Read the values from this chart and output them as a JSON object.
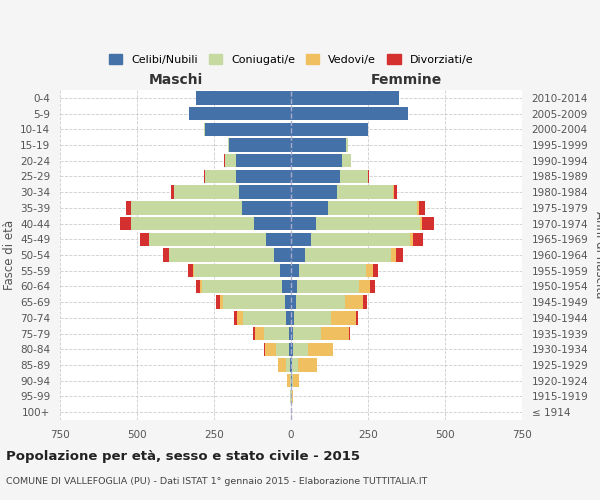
{
  "age_groups": [
    "100+",
    "95-99",
    "90-94",
    "85-89",
    "80-84",
    "75-79",
    "70-74",
    "65-69",
    "60-64",
    "55-59",
    "50-54",
    "45-49",
    "40-44",
    "35-39",
    "30-34",
    "25-29",
    "20-24",
    "15-19",
    "10-14",
    "5-9",
    "0-4"
  ],
  "birth_years": [
    "≤ 1914",
    "1915-1919",
    "1920-1924",
    "1925-1929",
    "1930-1934",
    "1935-1939",
    "1940-1944",
    "1945-1949",
    "1950-1954",
    "1955-1959",
    "1960-1964",
    "1965-1969",
    "1970-1974",
    "1975-1979",
    "1980-1984",
    "1985-1989",
    "1990-1994",
    "1995-1999",
    "2000-2004",
    "2005-2009",
    "2010-2014"
  ],
  "maschi": {
    "celibe": [
      0,
      1,
      1,
      2,
      5,
      8,
      15,
      20,
      30,
      35,
      55,
      80,
      120,
      160,
      170,
      180,
      180,
      200,
      280,
      330,
      310
    ],
    "coniugato": [
      0,
      1,
      3,
      15,
      45,
      80,
      140,
      200,
      260,
      280,
      340,
      380,
      400,
      360,
      210,
      100,
      35,
      5,
      1,
      0,
      0
    ],
    "vedovo": [
      0,
      2,
      8,
      25,
      35,
      30,
      20,
      10,
      5,
      3,
      2,
      1,
      1,
      0,
      0,
      0,
      0,
      0,
      0,
      0,
      0
    ],
    "divorziato": [
      0,
      0,
      0,
      0,
      2,
      5,
      10,
      15,
      15,
      15,
      20,
      30,
      35,
      15,
      10,
      3,
      1,
      0,
      0,
      0,
      0
    ]
  },
  "femmine": {
    "nubile": [
      0,
      1,
      2,
      3,
      5,
      8,
      10,
      15,
      20,
      25,
      45,
      65,
      80,
      120,
      150,
      160,
      165,
      180,
      250,
      380,
      350
    ],
    "coniugata": [
      0,
      1,
      5,
      20,
      50,
      90,
      120,
      160,
      200,
      220,
      280,
      320,
      340,
      290,
      180,
      90,
      30,
      5,
      1,
      0,
      0
    ],
    "vedova": [
      0,
      5,
      20,
      60,
      80,
      90,
      80,
      60,
      35,
      20,
      15,
      10,
      5,
      5,
      3,
      1,
      0,
      0,
      0,
      0,
      0
    ],
    "divorziata": [
      0,
      0,
      0,
      1,
      2,
      5,
      8,
      12,
      18,
      18,
      25,
      35,
      40,
      20,
      10,
      3,
      1,
      0,
      0,
      0,
      0
    ]
  },
  "colors": {
    "celibe": "#4472a8",
    "coniugato": "#c5d9a0",
    "vedovo": "#f0c060",
    "divorziato": "#d43030"
  },
  "xlim": 750,
  "title": "Popolazione per età, sesso e stato civile - 2015",
  "subtitle": "COMUNE DI VALLEFOGLIA (PU) - Dati ISTAT 1° gennaio 2015 - Elaborazione TUTTITALIA.IT",
  "xlabel_left": "Maschi",
  "xlabel_right": "Femmine",
  "ylabel_left": "Fasce di età",
  "ylabel_right": "Anni di nascita",
  "bg_color": "#f5f5f5",
  "plot_bg_color": "#ffffff",
  "legend_labels": [
    "Celibi/Nubili",
    "Coniugati/e",
    "Vedovi/e",
    "Divorziati/e"
  ]
}
